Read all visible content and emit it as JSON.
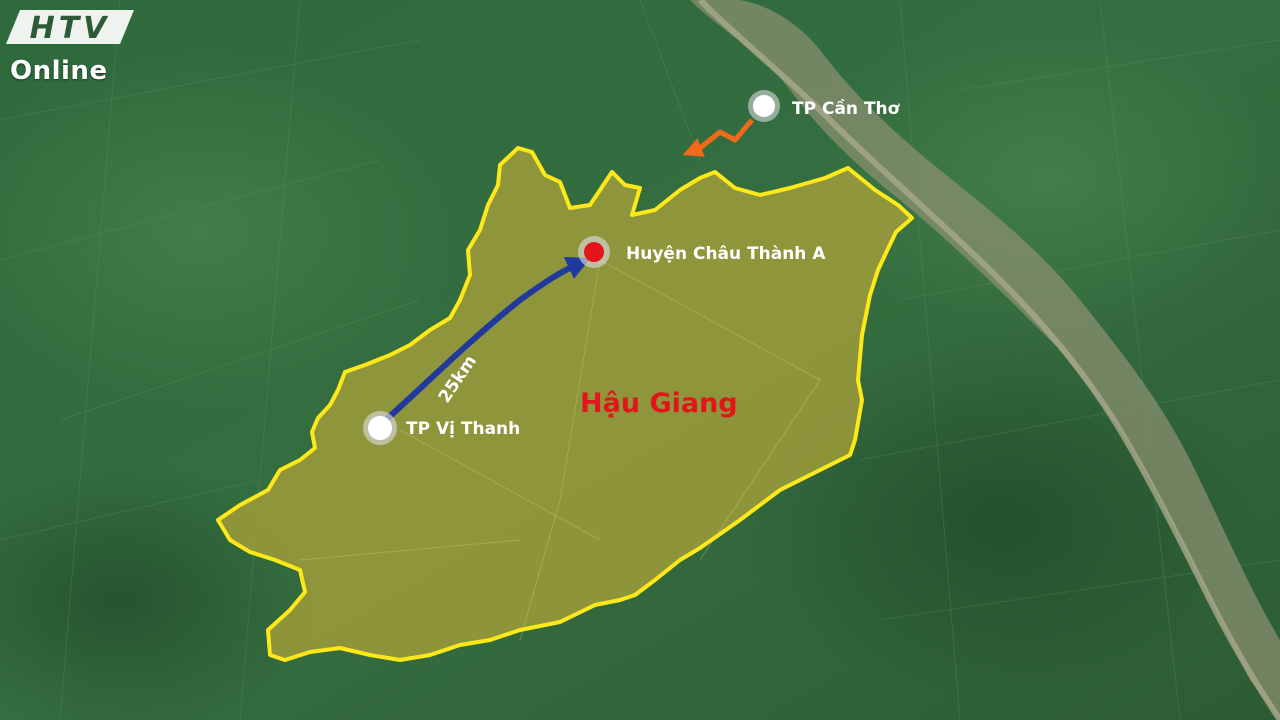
{
  "broadcaster": {
    "logo_text": "HTV",
    "logo_subtitle": "Online"
  },
  "map": {
    "province_label": "Hậu Giang",
    "places": [
      {
        "name": "TP Cần Thơ",
        "marker": "white-circle"
      },
      {
        "name": "Huyện Châu Thành A",
        "marker": "red-circle"
      },
      {
        "name": "TP Vị Thanh",
        "marker": "white-circle"
      }
    ],
    "route": {
      "distance_label": "25km",
      "color": "#1f3a9c"
    },
    "colors": {
      "province_fill": "#a8a03a",
      "province_border": "#ffe81a",
      "province_label": "#e3151a",
      "highlight_marker": "#e3151a",
      "orange_arrow": "#f06a1a"
    }
  }
}
